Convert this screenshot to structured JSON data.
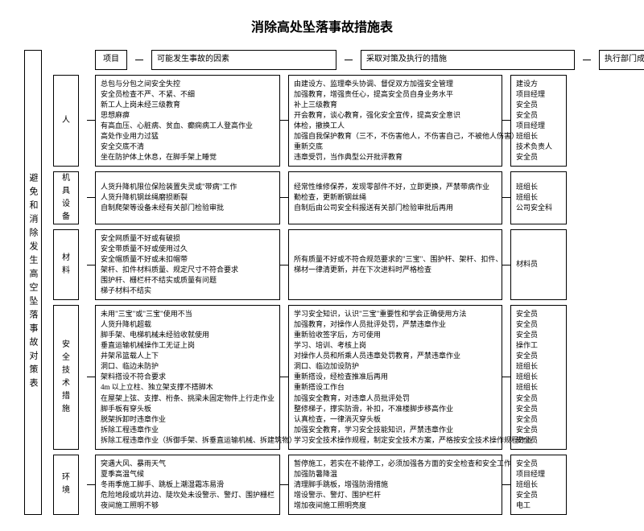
{
  "title": "消除高处坠落事故措施表",
  "rootLabel": "避免和消除发生高空坠落事故对策表",
  "header": {
    "proj": "项目",
    "factor": "可能发生事故的因素",
    "measure": "采取对策及执行的措施",
    "dept": "执行部门成员"
  },
  "groups": [
    {
      "label": "人",
      "factor": "总包与分包之间安全失控\n安全员检查不严、不紧、不细\n新工人上岗未经三级教育\n思想麻痹\n有高血压、心脏病、贫血、癫痫病工人登高作业\n高处作业用力过猛\n安全交底不清\n坐在防护体上休息，在脚手架上睡觉",
      "measure": "由建设方、监理牵头协调、督促双方加强安全管理\n加强教育，增强责任心，提高安全员自身业务水平\n补上三级教育\n开会教育，谈心教育，强化安全宣传，提高安全意识\n体检，撤换工人\n加强自我保护教育（三不，不伤害他人，不伤害自己，不被他人伤害）\n重新交底\n违章受罚，当作典型公开批评教育",
      "dept": "建设方\n项目经理\n安全员\n安全员\n项目经理\n班组长\n技术负责人\n安全员"
    },
    {
      "label": "机具设备",
      "factor": "人货升降机限位保险装置失灵或\"带病\"工作\n人货升降机钢丝绳磨损断裂\n自制爬架等设备未经有关部门检验审批",
      "measure": "经常性维修保养，发现零部件不好，立即更换，严禁带病作业\n勤检查，更新断钢丝绳\n自制后由公司安全科报送有关部门检验审批后再用",
      "dept": "班组长\n班组长\n公司安全科"
    },
    {
      "label": "材料",
      "factor": "安全网质量不好或有破损\n安全带质量不好或使用过久\n安全帽质量不好或未扣帽带\n架杆、扣件材料质量、规定尺寸不符合要求\n围护杆、栅栏杆不结实或质量有问题\n梯子材料不结实",
      "measure": "所有质量不好或不符合规范要求的\"三宝\"、围护杆、架杆、扣件、\n梯材一律清更新，并在下次进料时严格检查",
      "dept": "材料员"
    },
    {
      "label": "安全技术措施",
      "factor": "未用\"三宝\"或\"三宝\"使用不当\n人货升降机超载\n脚手架、电梯机械未经验收就使用\n垂直运输机械操作工无证上岗\n井架吊篮载人上下\n洞口、临边未防护\n架料搭设不符合要求\n4m 以上立柱、独立架支撑不搭脚木\n在屋架上弦、支撑、桁条、挑梁未固定物件上行走作业\n脚手板有穿头板\n脱架拆卸时违章作业\n拆除工程违章作业\n拆除工程违章作业（拆御手架、拆垂直运输机械、拆建筑物）",
      "measure": "学习安全知识，认识\"三宝\"重要性和学会正确使用方法\n加强教育，对操作人员批评处罚，严禁违章作业\n重新验收签字后，方可使用\n学习、培训、考核上岗\n对操作人员和所乘人员违章处罚教育，严禁违章作业\n洞口、临边加设防护\n重新搭设，经检查推准后再用\n重新搭设工作台\n加强安全教育，对违章人员批评处罚\n整修梯子，撑实防滑，补扣，不准楼脚步移高作业\n认真检查，一律淌灭穿头板\n加强安全教育，学习安全技能知识，严禁违章作业\n学习安全技术操作规程，制定安全技术方案，严格按安全技术操作规程作业",
      "dept": "安全员\n安全员\n安全员\n操作工\n安全员\n班组长\n班组长\n班组长\n安全员\n安全员\n安全员\n安全员\n安全员"
    },
    {
      "label": "环境",
      "factor": "突遇大风、暴雨天气\n夏季高温气候\n冬雨季施工脚手、跳板上潮湿霜冻易滑\n危险地段或坑井边、陡坎处未设警示、警灯、围护栅栏\n夜间施工照明不够",
      "measure": "暂停施工，若实在不能停工，必须加强各方面的安全检查和安全工作\n加强防暑降温\n清理脚手跳板，增强防滑措施\n增设警示、警灯、围护栏杆\n增加夜间施工照明亮度",
      "dept": "安全员\n项目经理\n班组长\n安全员\n电工"
    }
  ]
}
